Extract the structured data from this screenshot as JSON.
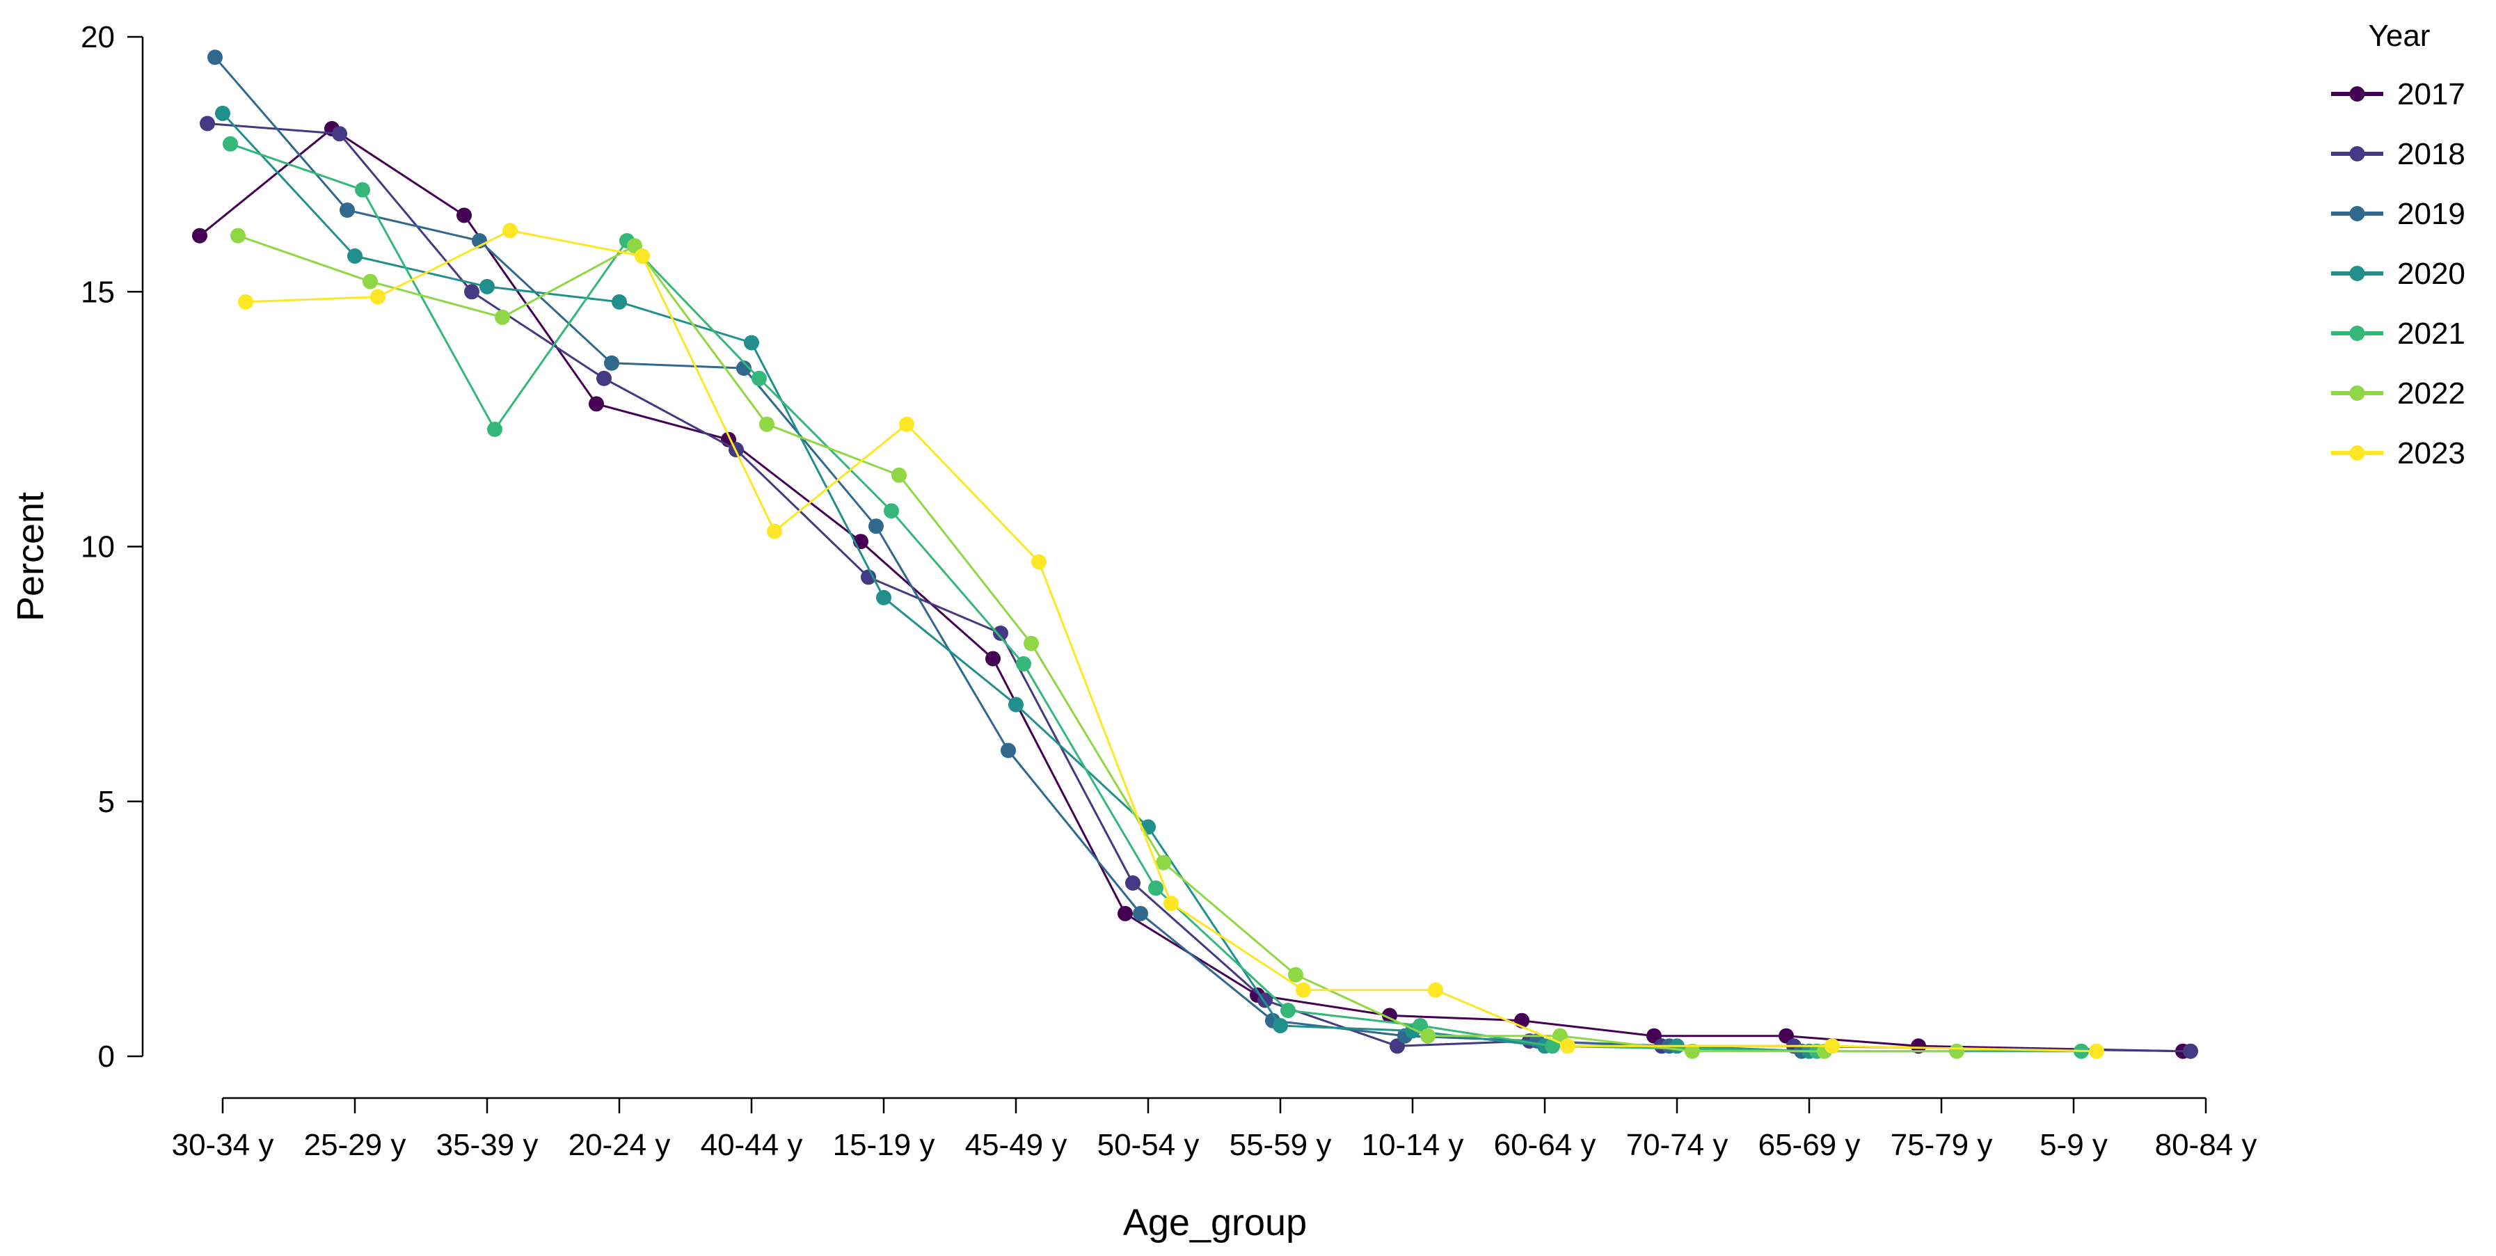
{
  "chart_data": {
    "type": "line",
    "xlabel": "Age_group",
    "ylabel": "Percent",
    "ylim": [
      0,
      20
    ],
    "yticks": [
      "0",
      "5",
      "10",
      "15",
      "20"
    ],
    "grid": false,
    "legend": {
      "title": "Year",
      "position": "right"
    },
    "categories": [
      "30-34 y",
      "25-29 y",
      "35-39 y",
      "20-24 y",
      "40-44 y",
      "15-19 y",
      "45-49 y",
      "50-54 y",
      "55-59 y",
      "10-14 y",
      "60-64 y",
      "70-74 y",
      "65-69 y",
      "75-79 y",
      "5-9 y",
      "80-84 y"
    ],
    "series": [
      {
        "name": "2017",
        "color": "#440154",
        "values": [
          16.1,
          18.2,
          16.5,
          12.8,
          12.1,
          10.1,
          7.8,
          2.8,
          1.2,
          0.8,
          0.7,
          0.4,
          0.4,
          0.2,
          null,
          0.1
        ]
      },
      {
        "name": "2018",
        "color": "#443a83",
        "values": [
          18.3,
          18.1,
          15.0,
          13.3,
          11.9,
          9.4,
          8.3,
          3.4,
          1.1,
          0.2,
          0.3,
          0.2,
          0.2,
          null,
          null,
          0.1
        ]
      },
      {
        "name": "2019",
        "color": "#31688e",
        "values": [
          19.6,
          16.6,
          16.0,
          13.6,
          13.5,
          10.4,
          6.0,
          2.8,
          0.7,
          0.4,
          0.3,
          0.2,
          0.1,
          null,
          null,
          null
        ]
      },
      {
        "name": "2020",
        "color": "#21908c",
        "values": [
          18.5,
          15.7,
          15.1,
          14.8,
          14.0,
          9.0,
          6.9,
          4.5,
          0.6,
          0.5,
          0.2,
          0.2,
          0.1,
          null,
          null,
          null
        ]
      },
      {
        "name": "2021",
        "color": "#35b779",
        "values": [
          17.9,
          17.0,
          12.3,
          16.0,
          13.3,
          10.7,
          7.7,
          3.3,
          0.9,
          0.6,
          0.2,
          null,
          0.1,
          null,
          0.1,
          null
        ]
      },
      {
        "name": "2022",
        "color": "#8fd744",
        "values": [
          16.1,
          15.2,
          14.5,
          15.9,
          12.4,
          11.4,
          8.1,
          3.8,
          1.6,
          0.4,
          0.4,
          0.1,
          0.1,
          0.1,
          null,
          null
        ]
      },
      {
        "name": "2023",
        "color": "#fde725",
        "values": [
          14.8,
          14.9,
          16.2,
          15.7,
          10.3,
          12.4,
          9.7,
          3.0,
          1.3,
          1.3,
          0.2,
          null,
          0.2,
          null,
          0.1,
          null
        ]
      }
    ]
  }
}
